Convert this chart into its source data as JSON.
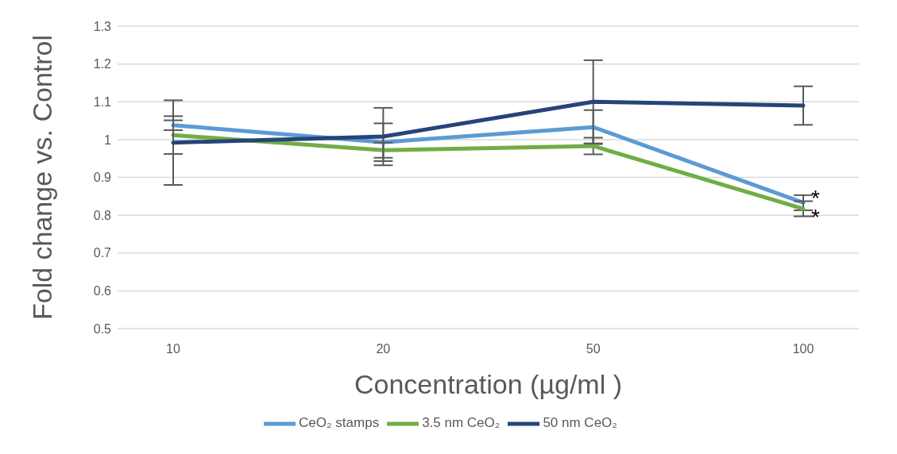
{
  "chart_data": {
    "type": "line",
    "xlabel": "Concentration (µg/ml )",
    "ylabel": "Fold change vs. Control",
    "categories": [
      "10",
      "20",
      "50",
      "100"
    ],
    "series": [
      {
        "name": "CeO₂ stamps",
        "color": "#5b9bd5",
        "values": [
          1.038,
          0.993,
          1.033,
          0.833
        ],
        "errors": [
          0.013,
          0.05,
          0.045,
          0.02
        ]
      },
      {
        "name": "3.5 nm CeO₂",
        "color": "#70ad47",
        "values": [
          1.012,
          0.972,
          0.983,
          0.817
        ],
        "errors": [
          0.05,
          0.02,
          0.022,
          0.02
        ]
      },
      {
        "name": "50 nm CeO₂",
        "color": "#264478",
        "values": [
          0.992,
          1.008,
          1.1,
          1.09
        ],
        "errors": [
          0.112,
          0.076,
          0.11,
          0.051
        ]
      }
    ],
    "ylim": [
      0.5,
      1.3
    ],
    "yticks": [
      0.5,
      0.6,
      0.7,
      0.8,
      0.9,
      1,
      1.1,
      1.2,
      1.3
    ],
    "grid": "y",
    "legend": "bottom",
    "marker": "none",
    "line_style": "solid",
    "annotations": [
      {
        "text": "*",
        "x": "100",
        "y": 0.833
      },
      {
        "text": "*",
        "x": "100",
        "y": 0.817
      }
    ]
  }
}
